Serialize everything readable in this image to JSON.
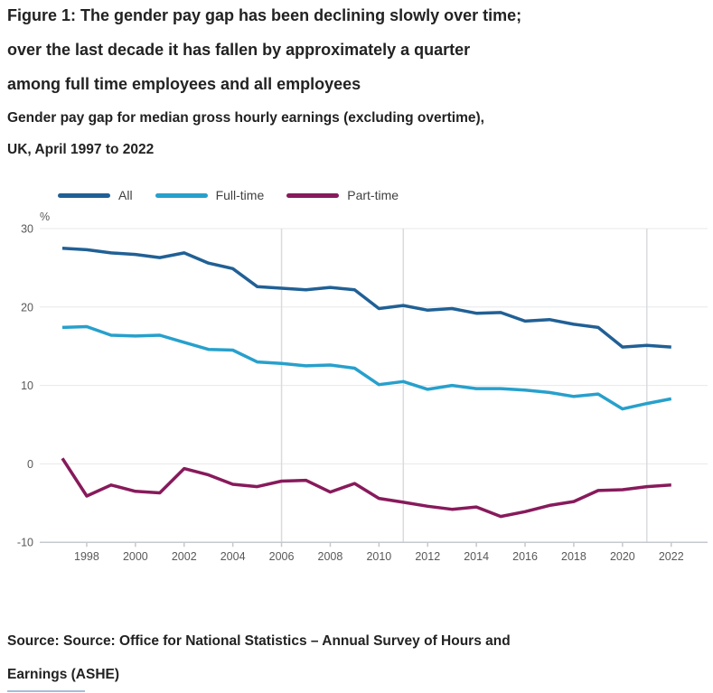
{
  "figure": {
    "title_lines": [
      "Figure 1: The gender pay gap has been declining slowly over time;",
      "over the last decade it has fallen by approximately a quarter",
      "among full time employees and all employees"
    ],
    "subtitle_lines": [
      "Gender pay gap for median gross hourly earnings (excluding overtime),",
      "UK, April 1997 to 2022"
    ],
    "source_lines": [
      "Source: Source: Office for National Statistics – Annual Survey of Hours and",
      "Earnings (ASHE)"
    ]
  },
  "chart_data": {
    "type": "line",
    "title": "Gender pay gap for median gross hourly earnings (excluding overtime), UK, April 1997 to 2022",
    "ylabel": "%",
    "xlabel": "",
    "ylim": [
      -10,
      30
    ],
    "yticks": [
      30,
      20,
      10,
      0,
      -10
    ],
    "xticks": [
      1998,
      2000,
      2002,
      2004,
      2006,
      2008,
      2010,
      2012,
      2014,
      2016,
      2018,
      2020,
      2022
    ],
    "break_years": [
      2006,
      2011,
      2021
    ],
    "grid": "horizontal",
    "legend_position": "top-left",
    "x": [
      1997,
      1998,
      1999,
      2000,
      2001,
      2002,
      2003,
      2004,
      2005,
      2006,
      2007,
      2008,
      2009,
      2010,
      2011,
      2012,
      2013,
      2014,
      2015,
      2016,
      2017,
      2018,
      2019,
      2020,
      2021,
      2022
    ],
    "series": [
      {
        "name": "All",
        "color": "#206095",
        "values": [
          27.5,
          27.3,
          26.9,
          26.7,
          26.3,
          26.9,
          25.6,
          24.9,
          22.6,
          22.4,
          22.2,
          22.5,
          22.2,
          19.8,
          20.2,
          19.6,
          19.8,
          19.2,
          19.3,
          18.2,
          18.4,
          17.8,
          17.4,
          14.9,
          15.1,
          14.9
        ]
      },
      {
        "name": "Full-time",
        "color": "#27a0cc",
        "values": [
          17.4,
          17.5,
          16.4,
          16.3,
          16.4,
          15.5,
          14.6,
          14.5,
          13.0,
          12.8,
          12.5,
          12.6,
          12.2,
          10.1,
          10.5,
          9.5,
          10.0,
          9.6,
          9.6,
          9.4,
          9.1,
          8.6,
          8.9,
          7.0,
          7.7,
          8.3
        ]
      },
      {
        "name": "Part-time",
        "color": "#871a5b",
        "values": [
          0.7,
          -4.1,
          -2.7,
          -3.5,
          -3.7,
          -0.6,
          -1.4,
          -2.6,
          -2.9,
          -2.2,
          -2.1,
          -3.6,
          -2.5,
          -4.4,
          -4.9,
          -5.4,
          -5.8,
          -5.5,
          -6.7,
          -6.1,
          -5.3,
          -4.8,
          -3.4,
          -3.3,
          -2.9,
          -2.7
        ]
      }
    ]
  }
}
